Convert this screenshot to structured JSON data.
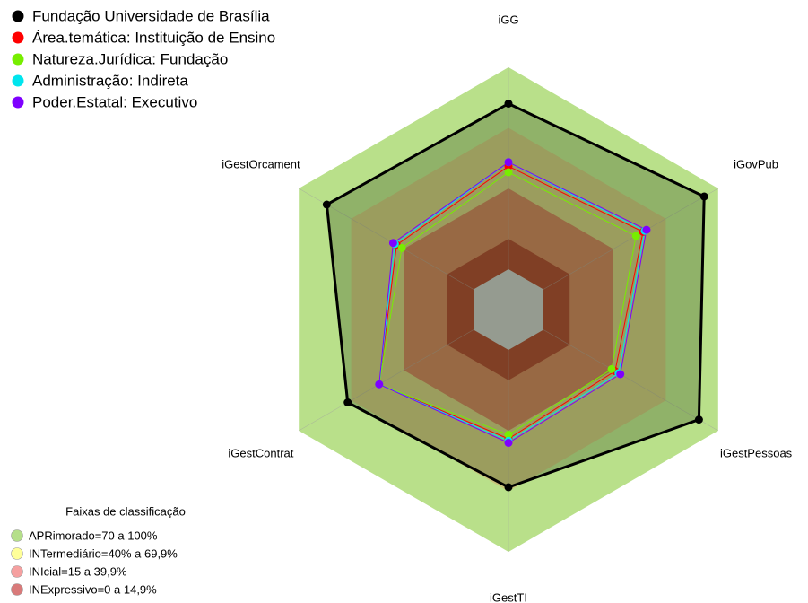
{
  "chart_data": {
    "type": "radar",
    "axes": [
      "iGG",
      "iGovPub",
      "iGestPessoas",
      "iGestTI",
      "iGestContrat",
      "iGestOrcament"
    ],
    "rlim": [
      0,
      100
    ],
    "series": [
      {
        "name": "Fundação Universidade de Brasília",
        "color": "#000000",
        "values": [
          82,
          92,
          89,
          68,
          72,
          84
        ]
      },
      {
        "name": "Área.temática: Instituição de Ensino",
        "color": "#ff0000",
        "values": [
          51,
          57,
          41,
          44,
          54,
          44
        ]
      },
      {
        "name": "Natureza.Jurídica: Fundação",
        "color": "#77ee00",
        "values": [
          48,
          53,
          39,
          42,
          54,
          41
        ]
      },
      {
        "name": "Administração: Indireta",
        "color": "#00e5ee",
        "values": [
          53,
          58,
          43,
          45,
          54,
          45
        ]
      },
      {
        "name": "Poder.Estatal: Executivo",
        "color": "#7f00ff",
        "values": [
          53,
          59,
          44,
          46,
          54,
          46
        ]
      }
    ],
    "bands_title": "Faixas de classificação",
    "bands": [
      {
        "label": "APRimorado=70 a 100%",
        "from": 70,
        "to": 100,
        "color": "#b5df8a",
        "fill": "#b9e08a"
      },
      {
        "label": "INTermediário=40% a 69,9%",
        "from": 40,
        "to": 70,
        "color": "#ffff99",
        "fill": "#c8c27a"
      },
      {
        "label": "INIcial=15 a 39,9%",
        "from": 15,
        "to": 40,
        "color": "#f5a0a0",
        "fill": "#c47b56"
      },
      {
        "label": "INExpressivo=0 a 14,9%",
        "from": 0,
        "to": 15,
        "color": "#d97a7a",
        "fill": "#a3402b"
      }
    ]
  }
}
